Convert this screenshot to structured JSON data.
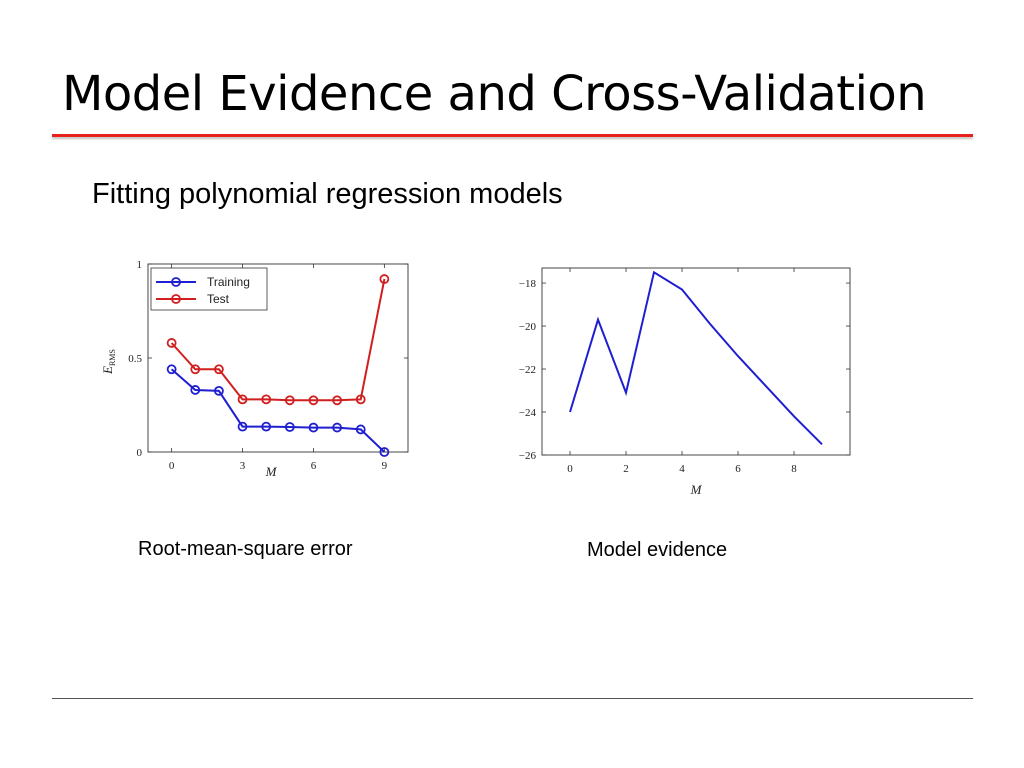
{
  "slide": {
    "title": "Model Evidence and Cross-Validation",
    "subtitle": "Fitting polynomial regression models",
    "caption_left": "Root-mean-square error",
    "caption_right": "Model evidence",
    "accent_color": "#e8211c"
  },
  "chart_data": [
    {
      "type": "line",
      "xlabel": "M",
      "ylabel_main": "E",
      "ylabel_sub": "RMS",
      "xlim": [
        -1,
        10
      ],
      "ylim": [
        0,
        1
      ],
      "x_ticks": [
        0,
        3,
        6,
        9
      ],
      "y_ticks": [
        0,
        0.5,
        1
      ],
      "legend_position": "top-left",
      "x": [
        0,
        1,
        2,
        3,
        4,
        5,
        6,
        7,
        8,
        9
      ],
      "series": [
        {
          "name": "Training",
          "color": "#1f1fd1",
          "values": [
            0.44,
            0.33,
            0.325,
            0.135,
            0.135,
            0.133,
            0.13,
            0.13,
            0.12,
            0.0
          ]
        },
        {
          "name": "Test",
          "color": "#d11f1f",
          "values": [
            0.58,
            0.44,
            0.44,
            0.28,
            0.28,
            0.275,
            0.275,
            0.275,
            0.28,
            0.92
          ]
        }
      ]
    },
    {
      "type": "line",
      "xlabel": "M",
      "xlim": [
        -1,
        10
      ],
      "ylim": [
        -26,
        -17.3
      ],
      "x_ticks": [
        0,
        2,
        4,
        6,
        8
      ],
      "y_ticks": [
        -18,
        -20,
        -22,
        -24,
        -26
      ],
      "x": [
        0,
        1,
        2,
        3,
        4,
        5,
        6,
        7,
        8,
        9
      ],
      "series": [
        {
          "color": "#1f1fd1",
          "values": [
            -24.0,
            -19.7,
            -23.1,
            -17.5,
            -18.3,
            -19.9,
            -21.4,
            -22.8,
            -24.2,
            -25.5
          ]
        }
      ]
    }
  ]
}
